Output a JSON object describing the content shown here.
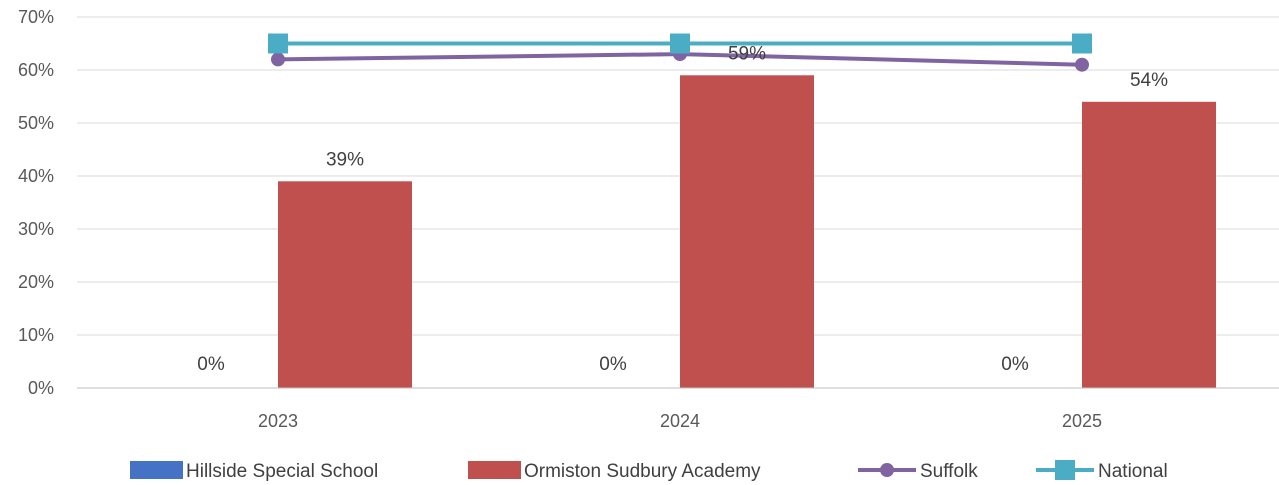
{
  "chart_data": {
    "type": "bar",
    "categories": [
      "2023",
      "2024",
      "2025"
    ],
    "ylim": [
      0,
      70
    ],
    "yticks": [
      0,
      10,
      20,
      30,
      40,
      50,
      60,
      70
    ],
    "ytick_labels": [
      "0%",
      "10%",
      "20%",
      "30%",
      "40%",
      "50%",
      "60%",
      "70%"
    ],
    "grid": true,
    "legend_position": "bottom",
    "series": [
      {
        "name": "Hillside Special School",
        "kind": "bar",
        "color": "#4472C4",
        "values": [
          0,
          0,
          0
        ],
        "data_labels": [
          "0%",
          "0%",
          "0%"
        ]
      },
      {
        "name": "Ormiston Sudbury Academy",
        "kind": "bar",
        "color": "#C0504D",
        "values": [
          39,
          59,
          54
        ],
        "data_labels": [
          "39%",
          "59%",
          "54%"
        ]
      },
      {
        "name": "Suffolk",
        "kind": "line",
        "marker": "circle",
        "color": "#8064A2",
        "values": [
          62,
          63,
          61
        ]
      },
      {
        "name": "National",
        "kind": "line",
        "marker": "square",
        "color": "#4BACC6",
        "values": [
          65,
          65,
          65
        ]
      }
    ]
  }
}
